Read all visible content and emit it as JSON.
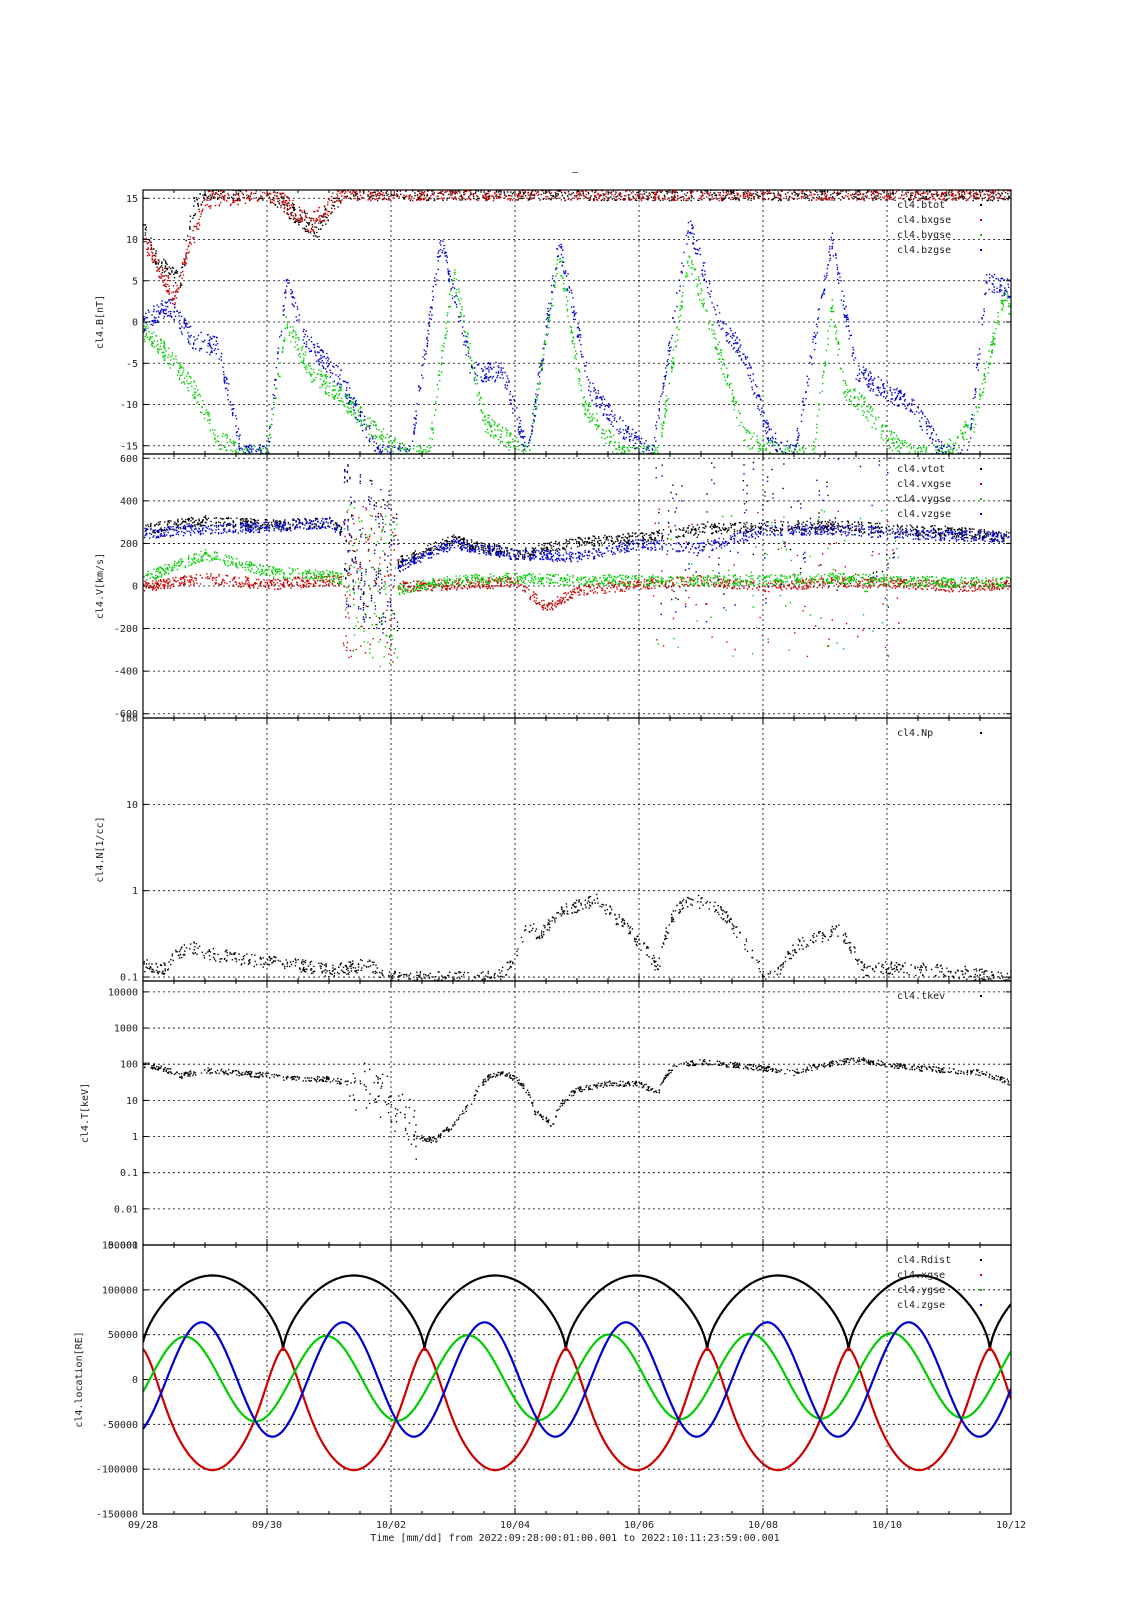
{
  "title": "–",
  "xlabel": "Time [mm/dd]  from 2022:09:28:00:01:00.001  to  2022:10:11:23:59:00.001",
  "x_ticks": [
    "09/28",
    "09/30",
    "10/02",
    "10/04",
    "10/06",
    "10/08",
    "10/10",
    "10/12"
  ],
  "colors": {
    "black": "#000000",
    "red": "#cc0000",
    "green": "#00cc00",
    "blue": "#0000cc"
  },
  "chart_data": [
    {
      "type": "scatter",
      "ylabel": "cl4.B[nT]",
      "ylim": [
        -16,
        16
      ],
      "y_ticks": [
        -15,
        -10,
        -5,
        0,
        5,
        10,
        15
      ],
      "x_range_days": [
        0,
        14
      ],
      "legend_position": "top-right",
      "series": [
        {
          "name": "cl4.btot",
          "color": "#000000",
          "x": [
            0,
            0.2,
            0.4,
            0.6,
            0.8,
            1.0,
            2.0,
            2.8,
            3.2,
            3.7,
            4.0,
            6.5,
            7.0,
            7.6,
            9.0,
            9.3,
            10.5,
            11.0,
            12.5
          ],
          "y": [
            12,
            8,
            6,
            5,
            14,
            16,
            16,
            11,
            16,
            16,
            16,
            16,
            16,
            16,
            16,
            16,
            16,
            16,
            16
          ]
        },
        {
          "name": "cl4.bxgse",
          "color": "#cc0000",
          "x": [
            0,
            0.3,
            0.5,
            0.7,
            1.0,
            2.0,
            2.7,
            3.0,
            3.2,
            3.6,
            4.0,
            6.7,
            7.2,
            9.4,
            9.8,
            10.4,
            11.4,
            12.8
          ],
          "y": [
            10,
            6,
            3,
            8,
            15,
            16,
            12,
            14,
            16,
            16,
            16,
            16,
            16,
            16,
            16,
            16,
            16,
            16
          ]
        },
        {
          "name": "cl4.bygse",
          "color": "#00cc00",
          "x": [
            0,
            0.4,
            0.8,
            1.2,
            1.6,
            2.0,
            2.3,
            2.7,
            3.2,
            3.7,
            4.2,
            4.6,
            5.0,
            5.5,
            6.2,
            6.7,
            7.1,
            7.7,
            8.3,
            8.8,
            9.3,
            9.7,
            10.3,
            10.8,
            11.1,
            11.3,
            11.6,
            12.0,
            12.4,
            12.9,
            13.4,
            13.9,
            14.0
          ],
          "y": [
            -1,
            -4,
            -8,
            -14,
            -16,
            -16,
            0,
            -6,
            -9,
            -13,
            -16,
            -16,
            6,
            -12,
            -16,
            8,
            -10,
            -16,
            -16,
            8,
            -4,
            -14,
            -16,
            -16,
            2,
            -8,
            -10,
            -14,
            -16,
            -16,
            -12,
            4,
            0
          ]
        },
        {
          "name": "cl4.bzgse",
          "color": "#0000cc",
          "x": [
            0,
            0.4,
            0.8,
            1.2,
            1.6,
            2.0,
            2.3,
            2.6,
            3.2,
            3.8,
            4.3,
            4.8,
            5.3,
            5.8,
            6.2,
            6.7,
            7.2,
            7.6,
            8.2,
            8.8,
            9.3,
            9.7,
            10.1,
            10.5,
            11.1,
            11.5,
            11.9,
            12.4,
            12.9,
            13.3,
            13.6,
            14.0
          ],
          "y": [
            0,
            2,
            -2,
            -3,
            -16,
            -16,
            5,
            -2,
            -7,
            -16,
            -16,
            10,
            -6,
            -6,
            -16,
            10,
            -8,
            -12,
            -16,
            12,
            0,
            -4,
            -14,
            -16,
            10,
            -6,
            -8,
            -10,
            -16,
            -16,
            5,
            4
          ]
        }
      ]
    },
    {
      "type": "scatter",
      "ylabel": "cl4.V[km/s]",
      "ylim": [
        -620,
        620
      ],
      "y_ticks": [
        -600,
        -400,
        -200,
        0,
        200,
        400,
        600
      ],
      "x_range_days": [
        0,
        14
      ],
      "legend_position": "top-right",
      "series": [
        {
          "name": "cl4.vtot",
          "color": "#000000",
          "x": [
            0,
            1.0,
            2.0,
            3.0,
            4.0,
            5.0,
            6.0,
            7.0,
            8.0,
            9.0,
            10.0,
            11.0,
            12.0,
            13.0,
            14.0
          ],
          "y": [
            270,
            310,
            290,
            300,
            100,
            220,
            150,
            210,
            230,
            270,
            280,
            290,
            270,
            260,
            230
          ]
        },
        {
          "name": "cl4.vxgse",
          "color": "#cc0000",
          "x": [
            0,
            1.0,
            2.0,
            3.0,
            4.0,
            5.0,
            6.0,
            6.5,
            7.0,
            8.0,
            9.0,
            10.0,
            11.0,
            12.0,
            13.0,
            14.0
          ],
          "y": [
            0,
            40,
            10,
            30,
            0,
            10,
            20,
            -100,
            -20,
            10,
            30,
            0,
            20,
            20,
            0,
            10
          ]
        },
        {
          "name": "cl4.vygse",
          "color": "#00cc00",
          "x": [
            0,
            1.0,
            2.0,
            3.0,
            4.0,
            5.0,
            6.0,
            7.0,
            8.0,
            9.0,
            10.0,
            11.0,
            12.0,
            13.0,
            14.0
          ],
          "y": [
            40,
            150,
            70,
            50,
            -20,
            30,
            40,
            30,
            30,
            30,
            30,
            40,
            30,
            20,
            20
          ]
        },
        {
          "name": "cl4.vzgse",
          "color": "#0000cc",
          "x": [
            0,
            1.0,
            2.0,
            3.0,
            4.0,
            5.0,
            6.0,
            7.0,
            8.0,
            9.0,
            10.0,
            11.0,
            12.0,
            13.0,
            14.0
          ],
          "y": [
            250,
            270,
            280,
            300,
            80,
            200,
            150,
            140,
            200,
            180,
            260,
            270,
            250,
            240,
            230
          ]
        }
      ]
    },
    {
      "type": "scatter",
      "ylabel": "cl4.N[1/cc]",
      "yscale": "log",
      "ylim": [
        0.09,
        100
      ],
      "y_ticks": [
        0.1,
        1,
        10,
        100
      ],
      "x_range_days": [
        0,
        14
      ],
      "legend_position": "top-right",
      "series": [
        {
          "name": "cl4.Np",
          "color": "#000000",
          "x": [
            0.0,
            0.3,
            0.6,
            0.8,
            1.0,
            1.5,
            2.0,
            2.5,
            3.0,
            3.3,
            3.6,
            4.0,
            5.7,
            6.0,
            6.2,
            6.4,
            6.8,
            7.3,
            7.6,
            8.0,
            8.3,
            8.6,
            8.8,
            9.2,
            9.6,
            10.0,
            10.2,
            10.6,
            11.2,
            11.6,
            12.0,
            13.0,
            13.8
          ],
          "y": [
            0.14,
            0.12,
            0.2,
            0.22,
            0.19,
            0.17,
            0.15,
            0.14,
            0.12,
            0.13,
            0.14,
            0.1,
            0.1,
            0.15,
            0.4,
            0.3,
            0.6,
            0.8,
            0.5,
            0.25,
            0.12,
            0.6,
            0.8,
            0.7,
            0.3,
            0.1,
            0.1,
            0.25,
            0.35,
            0.12,
            0.13,
            0.12,
            0.1
          ]
        }
      ]
    },
    {
      "type": "scatter",
      "ylabel": "cl4.T[keV]",
      "yscale": "log",
      "ylim": [
        0.001,
        20000
      ],
      "y_ticks": [
        0.001,
        0.01,
        0.1,
        1,
        10,
        100,
        1000,
        10000
      ],
      "y_tick_labels": [
        "0.001",
        "0.01",
        "0.1",
        "1",
        "10",
        "100",
        "1000",
        "10000"
      ],
      "x_range_days": [
        0,
        14
      ],
      "legend_position": "top-right",
      "series": [
        {
          "name": "cl4.tkev",
          "color": "#000000",
          "x": [
            0.0,
            0.3,
            0.6,
            1.0,
            1.5,
            2.0,
            2.5,
            3.0,
            3.3,
            3.6,
            3.9,
            4.0,
            4.4,
            4.7,
            5.0,
            5.3,
            5.6,
            5.8,
            6.0,
            6.3,
            6.6,
            7.0,
            7.5,
            8.0,
            8.3,
            8.6,
            9.0,
            9.5,
            10.0,
            10.5,
            11.0,
            11.5,
            12.0,
            12.5,
            13.0,
            13.5,
            14.0
          ],
          "y": [
            100,
            80,
            50,
            70,
            60,
            50,
            40,
            40,
            30,
            25,
            15,
            8,
            1,
            0.8,
            2,
            8,
            50,
            60,
            40,
            5,
            2,
            20,
            30,
            30,
            15,
            100,
            120,
            100,
            80,
            60,
            100,
            140,
            100,
            80,
            70,
            60,
            30
          ]
        }
      ]
    },
    {
      "type": "line",
      "ylabel": "cl4.location[RE]",
      "ylim": [
        -150000,
        150000
      ],
      "y_ticks": [
        -150000,
        -100000,
        -50000,
        0,
        50000,
        100000,
        150000
      ],
      "x_range_days": [
        0,
        14
      ],
      "legend_position": "top-right",
      "series": [
        {
          "name": "cl4.Rdist",
          "color": "#000000",
          "model": "abs_sine",
          "period_days": 2.28,
          "peak": 116000,
          "min": 32000,
          "phase_days": -0.02
        },
        {
          "name": "cl4.xgse",
          "color": "#cc0000",
          "model": "orbit_x",
          "period_days": 2.28,
          "amplitude": 101000,
          "phase_days": -0.02
        },
        {
          "name": "cl4.ygse",
          "color": "#00cc00",
          "model": "orbit_y",
          "period_days": 2.28,
          "amplitude": 50000,
          "phase_days": -0.02
        },
        {
          "name": "cl4.zgse",
          "color": "#0000cc",
          "model": "orbit_z",
          "period_days": 2.28,
          "amplitude": 75000,
          "phase_days": -0.02
        }
      ]
    }
  ]
}
